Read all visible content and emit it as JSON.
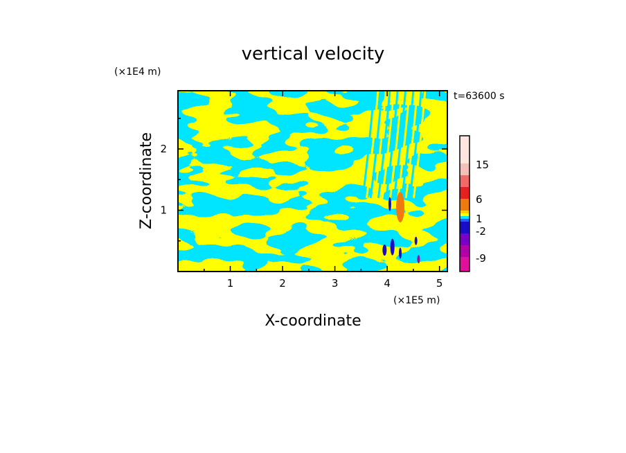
{
  "chart_data": {
    "type": "heatmap",
    "title": "vertical velocity",
    "xlabel": "X-coordinate",
    "ylabel": "Z-coordinate",
    "x_scale_note": "(×1E5 m)",
    "y_scale_note": "(×1E4 m)",
    "time_label": "t=63600 s",
    "xlim": [
      0,
      5.15
    ],
    "ylim": [
      0,
      2.95
    ],
    "x_ticks": [
      "1",
      "2",
      "3",
      "4",
      "5"
    ],
    "x_tick_values": [
      1,
      2,
      3,
      4,
      5
    ],
    "y_ticks": [
      "1",
      "2"
    ],
    "y_tick_values": [
      1,
      2
    ],
    "field_description": "alternating positive (yellow) and negative (cyan) vertical velocity bands tilted across the domain, with strong updrafts (orange/red) and downdrafts (blue/purple) concentrated near x≈4–4.5×1E5 m in the lower troposphere",
    "colorbar": {
      "levels_labeled": [
        "15",
        "6",
        "1",
        "-2",
        "-9"
      ],
      "level_values": [
        15,
        6,
        1,
        -2,
        -9
      ],
      "colors_top_to_bottom": [
        "#fde6e0",
        "#f5c0b8",
        "#f06a6a",
        "#e62020",
        "#ee7a10",
        "#ffd000",
        "#ffff00",
        "#00e5ff",
        "#2060ff",
        "#1a0cc8",
        "#7a00c8",
        "#b000a8",
        "#e0109a"
      ]
    },
    "colors": {
      "positive": "#ffff00",
      "negative": "#00e5ff",
      "strong_up": "#ee7a10",
      "strong_down": "#1a0cc8"
    }
  }
}
